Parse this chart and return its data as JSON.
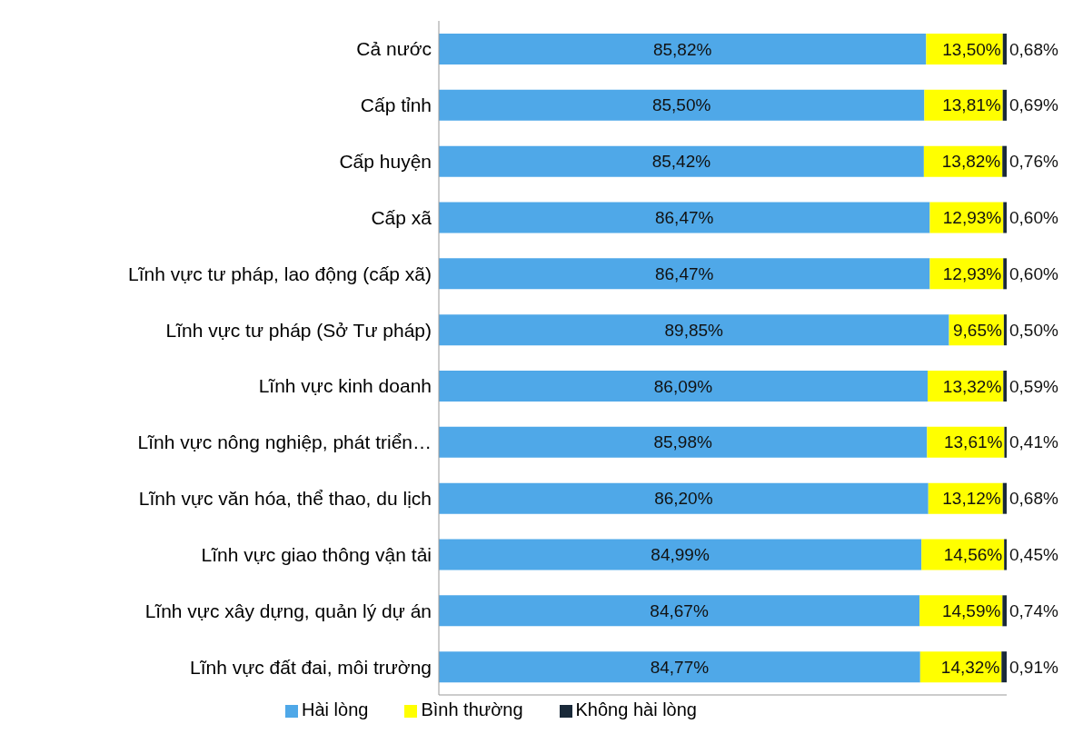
{
  "chart_data": {
    "type": "bar",
    "orientation": "horizontal",
    "stacked": true,
    "categories": [
      "Cả nước",
      "Cấp tỉnh",
      "Cấp huyện",
      "Cấp xã",
      "Lĩnh vực tư pháp, lao động (cấp xã)",
      "Lĩnh vực tư pháp (Sở Tư pháp)",
      "Lĩnh vực kinh doanh",
      "Lĩnh vực nông nghiệp, phát triển…",
      "Lĩnh vực văn hóa, thể thao, du lịch",
      "Lĩnh vực giao thông vận tải",
      "Lĩnh vực xây dựng, quản lý dự án",
      "Lĩnh vực đất đai, môi trường"
    ],
    "series": [
      {
        "name": "Hài lòng",
        "color": "#4fa8e8",
        "values": [
          85.82,
          85.5,
          85.42,
          86.47,
          86.47,
          89.85,
          86.09,
          85.98,
          86.2,
          84.99,
          84.67,
          84.77
        ],
        "value_labels": [
          "85,82%",
          "85,50%",
          "85,42%",
          "86,47%",
          "86,47%",
          "89,85%",
          "86,09%",
          "85,98%",
          "86,20%",
          "84,99%",
          "84,67%",
          "84,77%"
        ]
      },
      {
        "name": "Bình thường",
        "color": "#ffff00",
        "values": [
          13.5,
          13.81,
          13.82,
          12.93,
          12.93,
          9.65,
          13.32,
          13.61,
          13.12,
          14.56,
          14.59,
          14.32
        ],
        "value_labels": [
          "13,50%",
          "13,81%",
          "13,82%",
          "12,93%",
          "12,93%",
          "9,65%",
          "13,32%",
          "13,61%",
          "13,12%",
          "14,56%",
          "14,59%",
          "14,32%"
        ]
      },
      {
        "name": "Không hài lòng",
        "color": "#1a2a3a",
        "values": [
          0.68,
          0.69,
          0.76,
          0.6,
          0.6,
          0.5,
          0.59,
          0.41,
          0.68,
          0.45,
          0.74,
          0.91
        ],
        "value_labels": [
          "0,68%",
          "0,69%",
          "0,76%",
          "0,60%",
          "0,60%",
          "0,50%",
          "0,59%",
          "0,41%",
          "0,68%",
          "0,45%",
          "0,74%",
          "0,91%"
        ]
      }
    ],
    "tick_labels": "y",
    "legend": "bottom"
  }
}
